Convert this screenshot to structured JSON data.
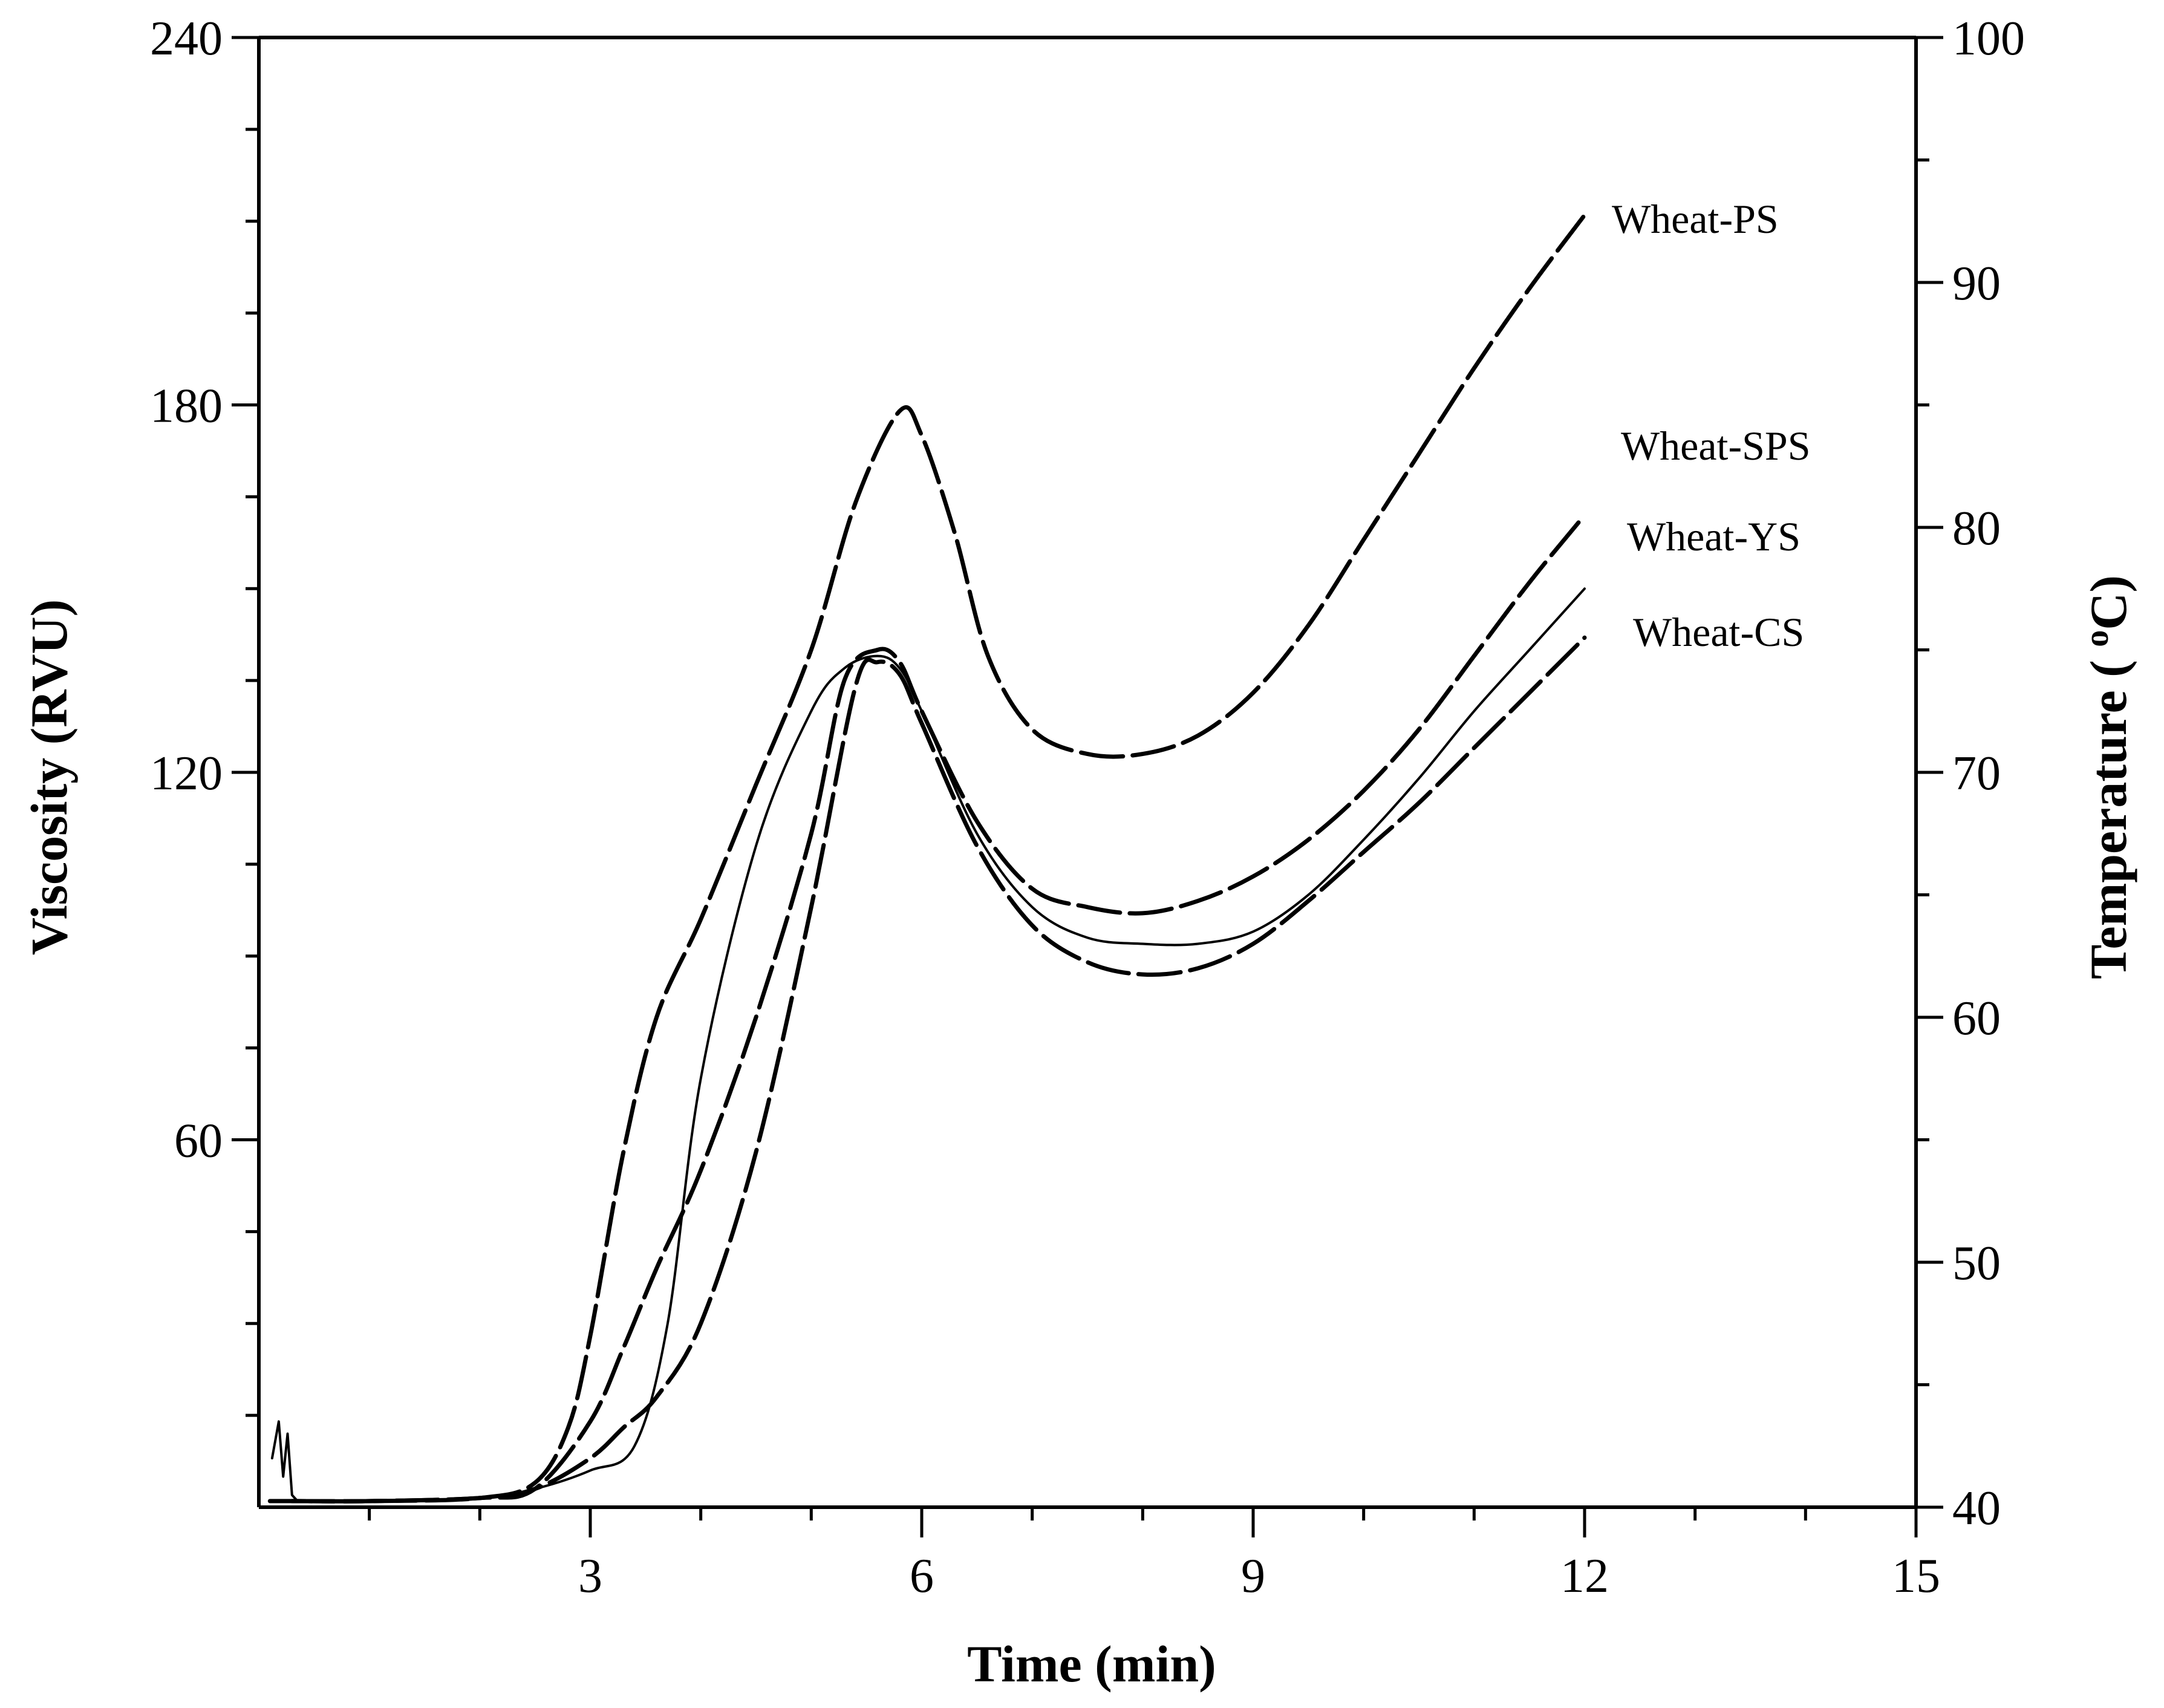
{
  "chart_data": {
    "type": "line",
    "title": "",
    "xlabel": "Time (min)",
    "ylabel_left": "Viscosity (RVU)",
    "ylabel_right": "Temperature ( oC)",
    "ylabel_right_parts": {
      "prefix": "Temperature ( ",
      "superscript": "o",
      "suffix": "C)"
    },
    "xlim": [
      0,
      15
    ],
    "ylim_left": [
      0,
      240
    ],
    "ylim_right": [
      40,
      100
    ],
    "x_ticks": [
      3,
      6,
      9,
      12,
      15
    ],
    "x_tick_labels": [
      "3",
      "6",
      "9",
      "12",
      "15"
    ],
    "y_left_ticks": [
      60,
      120,
      180,
      240
    ],
    "y_left_tick_labels": [
      "60",
      "120",
      "180",
      "240"
    ],
    "y_right_ticks": [
      40,
      50,
      60,
      70,
      80,
      90,
      100
    ],
    "y_right_tick_labels": [
      "40",
      "50",
      "60",
      "70",
      "80",
      "90",
      "100"
    ],
    "x_minor_step": 1,
    "y_left_minor_step": 15,
    "y_right_minor_step": 5,
    "grid": false,
    "legend": "right, labels beside curve ends",
    "series": [
      {
        "name": "Wheat-PS",
        "style": "dashed",
        "x": [
          0.1,
          0.3,
          1.0,
          2.0,
          2.5,
          2.8,
          3.0,
          3.3,
          3.6,
          4.0,
          4.5,
          5.0,
          5.4,
          5.8,
          6.0,
          6.3,
          6.6,
          7.0,
          7.5,
          8.0,
          8.5,
          9.0,
          9.5,
          10.0,
          10.5,
          11.0,
          11.5,
          12.0
        ],
        "y": [
          1,
          1,
          1,
          1.5,
          4,
          13,
          28,
          58,
          80,
          96,
          118,
          140,
          164,
          179,
          175,
          159,
          139,
          127,
          123,
          123,
          126,
          133,
          144,
          158,
          172,
          186,
          199,
          211
        ]
      },
      {
        "name": "Wheat-SPS",
        "style": "dashed",
        "x": [
          0.3,
          1.0,
          2.0,
          2.5,
          3.0,
          3.3,
          3.6,
          4.0,
          4.5,
          5.0,
          5.3,
          5.6,
          5.8,
          6.0,
          6.5,
          7.0,
          7.5,
          8.0,
          8.5,
          9.0,
          9.5,
          10.0,
          10.5,
          11.0,
          11.5,
          12.0
        ],
        "y": [
          1,
          1,
          1.5,
          3,
          14,
          26,
          39,
          55,
          80,
          110,
          135,
          140,
          138,
          130,
          112,
          101,
          98,
          97,
          99,
          103,
          109,
          117,
          127,
          139,
          151,
          162
        ]
      },
      {
        "name": "Wheat-YS",
        "style": "solid",
        "x": [
          0.3,
          1.0,
          2.0,
          2.5,
          3.0,
          3.4,
          3.7,
          4.0,
          4.5,
          5.0,
          5.3,
          5.6,
          5.8,
          6.0,
          6.5,
          7.0,
          7.5,
          8.0,
          8.5,
          9.0,
          9.5,
          10.0,
          10.5,
          11.0,
          11.5,
          12.0
        ],
        "y": [
          1,
          1,
          1.5,
          3,
          6,
          10,
          30,
          70,
          108,
          130,
          137,
          139,
          137,
          130,
          110,
          98,
          93,
          92,
          92,
          94,
          100,
          109,
          119,
          130,
          140,
          150
        ]
      },
      {
        "name": "Wheat-CS",
        "style": "dashed",
        "x": [
          0.3,
          1.0,
          2.0,
          2.5,
          3.0,
          3.3,
          3.6,
          4.0,
          4.5,
          5.0,
          5.4,
          5.6,
          5.8,
          6.0,
          6.5,
          7.0,
          7.5,
          8.0,
          8.5,
          9.0,
          9.5,
          10.0,
          10.5,
          11.0,
          11.5,
          12.0
        ],
        "y": [
          1,
          1,
          1.5,
          3,
          8,
          13,
          18,
          30,
          58,
          98,
          134,
          138,
          136,
          128,
          108,
          95,
          89,
          87,
          88,
          92,
          99,
          107,
          115,
          124,
          133,
          142
        ]
      }
    ]
  }
}
